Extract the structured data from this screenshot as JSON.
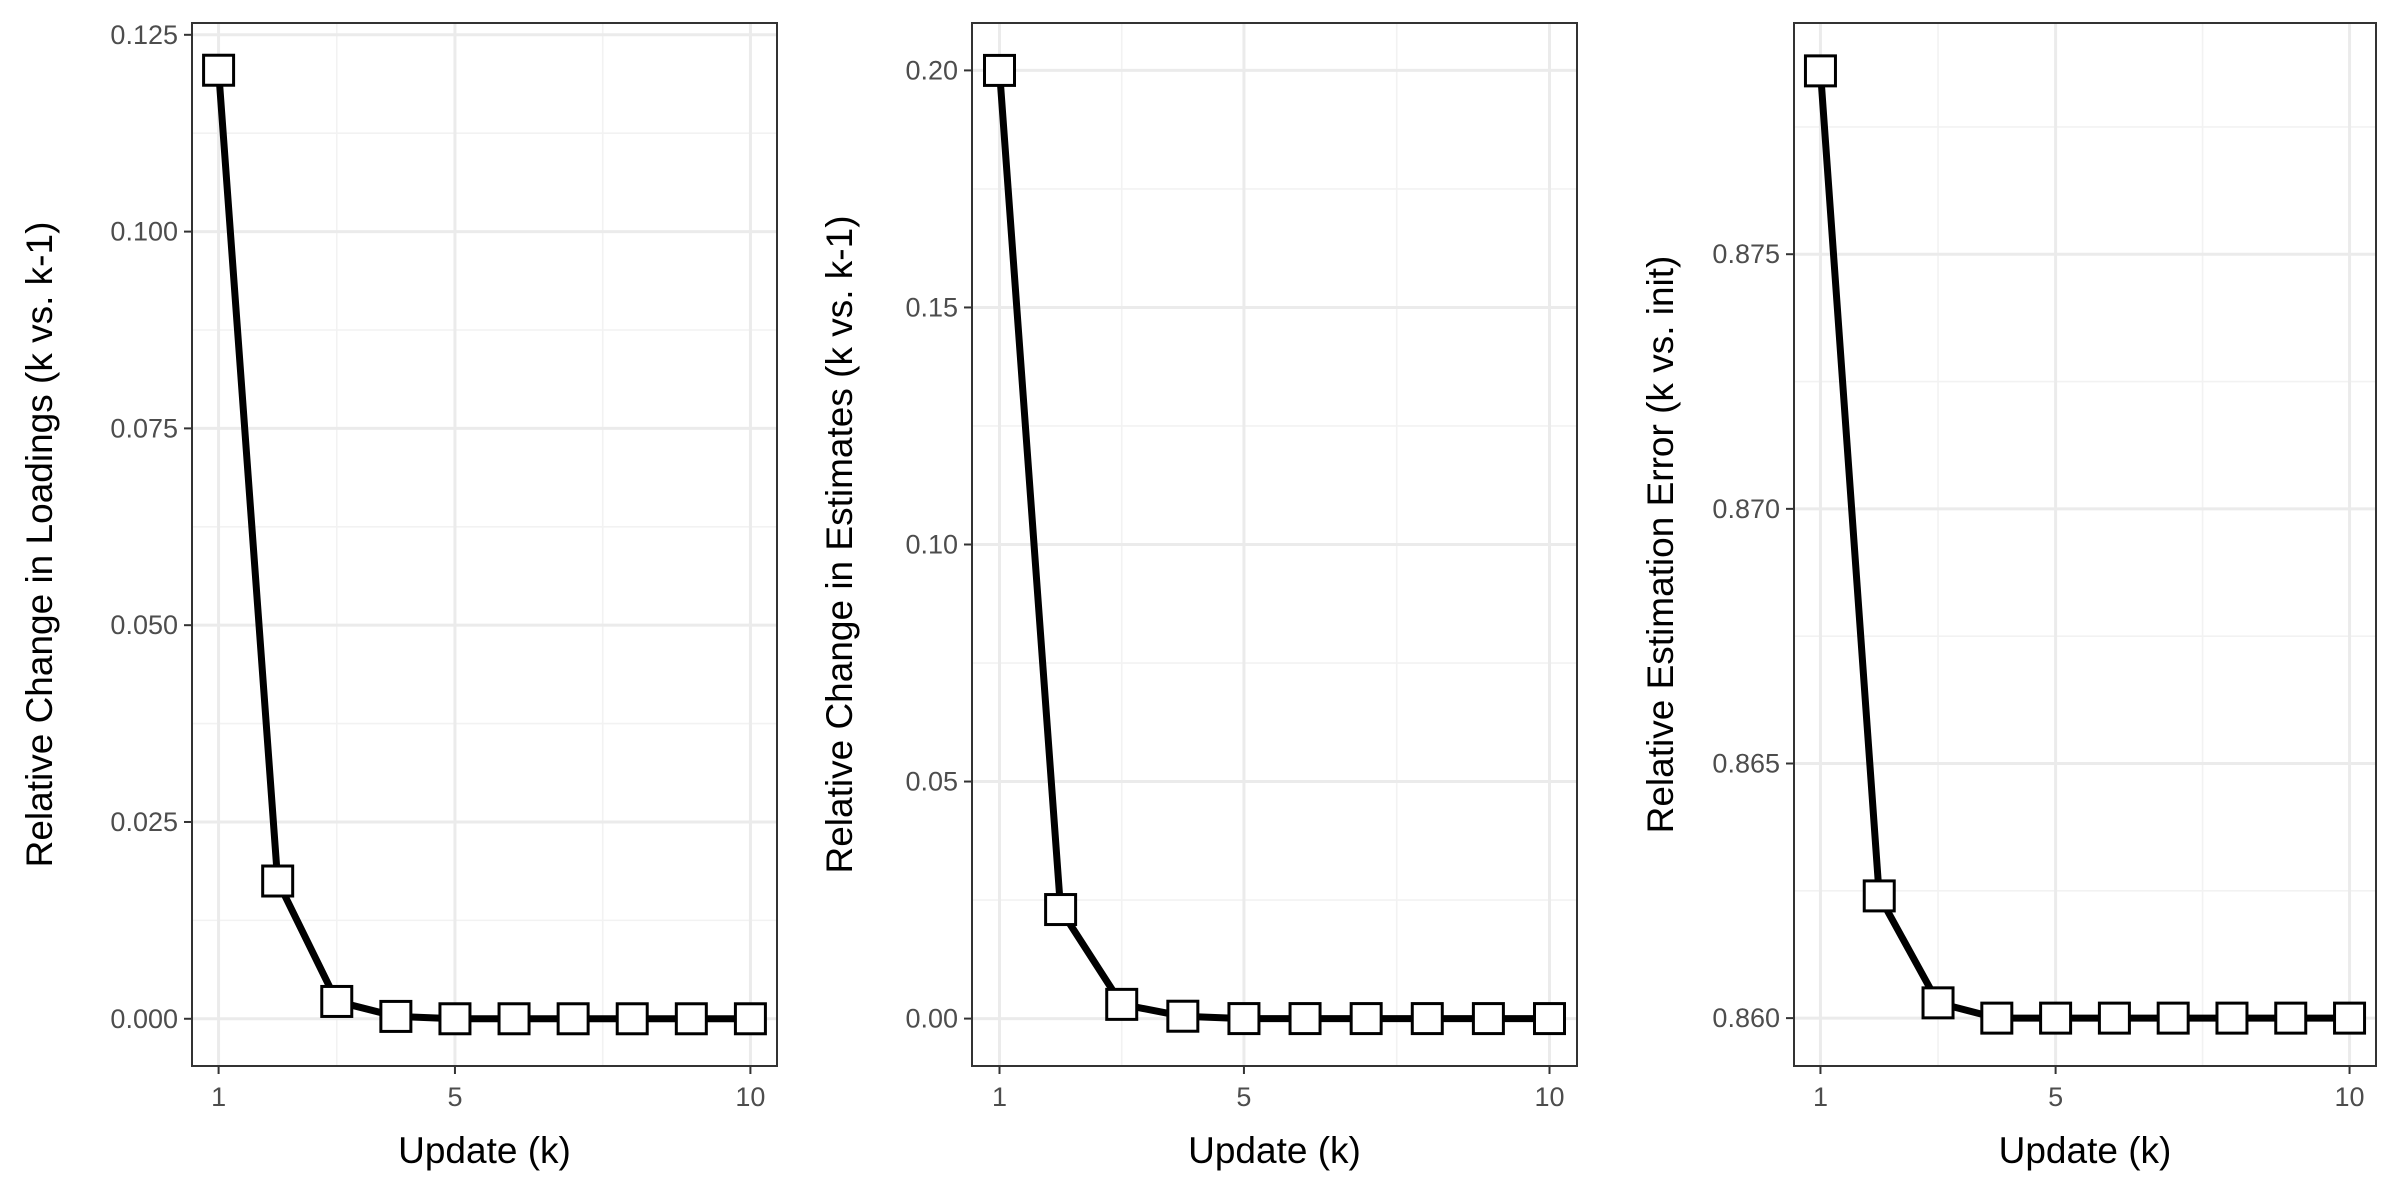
{
  "chart_data": [
    {
      "type": "line",
      "xlabel": "Update (k)",
      "ylabel": "Relative Change in Loadings (k vs. k-1)",
      "x": [
        1,
        2,
        3,
        4,
        5,
        6,
        7,
        8,
        9,
        10
      ],
      "values": [
        0.1205,
        0.0175,
        0.0022,
        0.0003,
        0.0,
        0.0,
        0.0,
        0.0,
        0.0,
        0.0
      ],
      "xlim": [
        0.55,
        10.45
      ],
      "ylim": [
        -0.006,
        0.1265
      ],
      "x_ticks": [
        1,
        5,
        10
      ],
      "x_tick_labels": [
        "1",
        "5",
        "10"
      ],
      "y_ticks": [
        0,
        0.025,
        0.05,
        0.075,
        0.1,
        0.125
      ],
      "y_tick_labels": [
        "0.000",
        "0.025",
        "0.050",
        "0.075",
        "0.100",
        "0.125"
      ],
      "marker": "open-square",
      "grid": true
    },
    {
      "type": "line",
      "xlabel": "Update (k)",
      "ylabel": "Relative Change in Estimates (k vs. k-1)",
      "x": [
        1,
        2,
        3,
        4,
        5,
        6,
        7,
        8,
        9,
        10
      ],
      "values": [
        0.2,
        0.023,
        0.003,
        0.0005,
        0.0,
        0.0,
        0.0,
        0.0,
        0.0,
        0.0
      ],
      "xlim": [
        0.55,
        10.45
      ],
      "ylim": [
        -0.01,
        0.21
      ],
      "x_ticks": [
        1,
        5,
        10
      ],
      "x_tick_labels": [
        "1",
        "5",
        "10"
      ],
      "y_ticks": [
        0,
        0.05,
        0.1,
        0.15,
        0.2
      ],
      "y_tick_labels": [
        "0.00",
        "0.05",
        "0.10",
        "0.15",
        "0.20"
      ],
      "marker": "open-square",
      "grid": true
    },
    {
      "type": "line",
      "xlabel": "Update (k)",
      "ylabel": "Relative Estimation Error (k vs. init)",
      "x": [
        1,
        2,
        3,
        4,
        5,
        6,
        7,
        8,
        9,
        10
      ],
      "values": [
        0.8786,
        0.8624,
        0.8603,
        0.86,
        0.86,
        0.86,
        0.86,
        0.86,
        0.86,
        0.86
      ],
      "xlim": [
        0.55,
        10.45
      ],
      "ylim": [
        0.85906,
        0.87954
      ],
      "x_ticks": [
        1,
        5,
        10
      ],
      "x_tick_labels": [
        "1",
        "5",
        "10"
      ],
      "y_ticks": [
        0.86,
        0.865,
        0.87,
        0.875
      ],
      "y_tick_labels": [
        "0.860",
        "0.865",
        "0.870",
        "0.875"
      ],
      "marker": "open-square",
      "grid": true
    }
  ]
}
